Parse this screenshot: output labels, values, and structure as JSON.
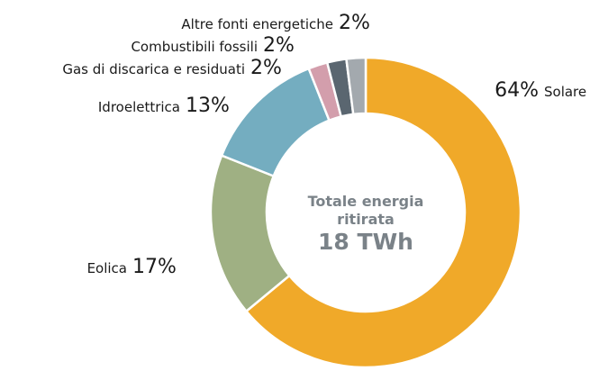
{
  "chart_data": {
    "type": "donut",
    "center_label": "Totale energia ritirata",
    "center_value": "18 TWh",
    "categories": [
      "Solare",
      "Eolica",
      "Idroelettrica",
      "Gas di discarica e residuati",
      "Combustibili fossili",
      "Altre fonti energetiche"
    ],
    "values": [
      64,
      17,
      13,
      2,
      2,
      2
    ],
    "value_labels": [
      "64%",
      "17%",
      "13%",
      "2%",
      "2%",
      "2%"
    ],
    "colors": [
      "#f0a929",
      "#9fb083",
      "#74adc0",
      "#d39eac",
      "#5a6670",
      "#a3a9ae"
    ]
  }
}
